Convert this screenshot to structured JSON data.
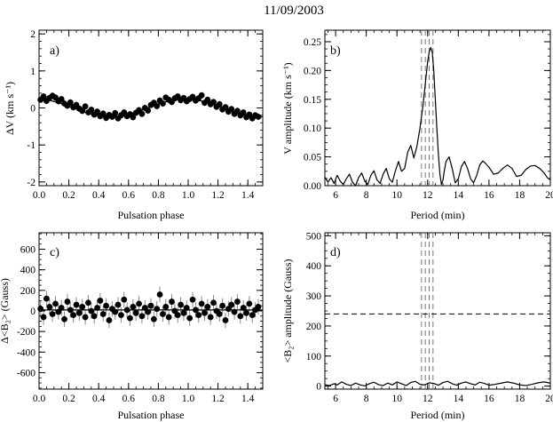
{
  "title": "11/09/2003",
  "chart_data": [
    {
      "id": "a",
      "type": "scatter",
      "panel_label": "a)",
      "xlabel": "Pulsation phase",
      "ylabel": "ΔV (km s⁻¹)",
      "xlim": [
        0,
        1.5
      ],
      "ylim": [
        -2.1,
        2.1
      ],
      "xticks": [
        0.0,
        0.2,
        0.4,
        0.6,
        0.8,
        1.0,
        1.2,
        1.4
      ],
      "yticks": [
        -2,
        -1,
        0,
        1,
        2
      ],
      "x_decimals": 1,
      "fit": {
        "amplitude": 0.24,
        "period": 1.0,
        "phase_of_max": 0.98,
        "offset": 0.0
      },
      "error_bar": 0.09,
      "points": [
        [
          0.01,
          0.22
        ],
        [
          0.03,
          0.31
        ],
        [
          0.05,
          0.19
        ],
        [
          0.07,
          0.27
        ],
        [
          0.09,
          0.33
        ],
        [
          0.11,
          0.28
        ],
        [
          0.13,
          0.18
        ],
        [
          0.15,
          0.24
        ],
        [
          0.17,
          0.12
        ],
        [
          0.19,
          0.06
        ],
        [
          0.21,
          0.15
        ],
        [
          0.23,
          0.02
        ],
        [
          0.25,
          0.08
        ],
        [
          0.27,
          -0.02
        ],
        [
          0.29,
          -0.08
        ],
        [
          0.31,
          0.04
        ],
        [
          0.33,
          -0.12
        ],
        [
          0.35,
          -0.05
        ],
        [
          0.37,
          -0.18
        ],
        [
          0.39,
          -0.1
        ],
        [
          0.41,
          -0.22
        ],
        [
          0.43,
          -0.15
        ],
        [
          0.45,
          -0.27
        ],
        [
          0.47,
          -0.19
        ],
        [
          0.49,
          -0.24
        ],
        [
          0.51,
          -0.14
        ],
        [
          0.53,
          -0.28
        ],
        [
          0.55,
          -0.2
        ],
        [
          0.57,
          -0.12
        ],
        [
          0.59,
          -0.22
        ],
        [
          0.61,
          -0.17
        ],
        [
          0.63,
          -0.25
        ],
        [
          0.65,
          -0.13
        ],
        [
          0.67,
          -0.06
        ],
        [
          0.69,
          -0.16
        ],
        [
          0.71,
          0.0
        ],
        [
          0.73,
          -0.07
        ],
        [
          0.75,
          0.08
        ],
        [
          0.77,
          0.14
        ],
        [
          0.79,
          0.05
        ],
        [
          0.81,
          0.2
        ],
        [
          0.83,
          0.12
        ],
        [
          0.85,
          0.28
        ],
        [
          0.87,
          0.22
        ],
        [
          0.89,
          0.16
        ],
        [
          0.91,
          0.26
        ],
        [
          0.93,
          0.31
        ],
        [
          0.95,
          0.21
        ],
        [
          0.97,
          0.27
        ],
        [
          0.99,
          0.18
        ],
        [
          1.01,
          0.24
        ],
        [
          1.03,
          0.3
        ],
        [
          1.05,
          0.2
        ],
        [
          1.07,
          0.26
        ],
        [
          1.09,
          0.34
        ],
        [
          1.11,
          0.14
        ],
        [
          1.13,
          0.22
        ],
        [
          1.15,
          0.1
        ],
        [
          1.17,
          0.16
        ],
        [
          1.19,
          0.03
        ],
        [
          1.21,
          0.1
        ],
        [
          1.23,
          -0.04
        ],
        [
          1.25,
          0.02
        ],
        [
          1.27,
          -0.1
        ],
        [
          1.29,
          -0.03
        ],
        [
          1.31,
          -0.16
        ],
        [
          1.33,
          -0.08
        ],
        [
          1.35,
          -0.2
        ],
        [
          1.37,
          -0.12
        ],
        [
          1.39,
          -0.25
        ],
        [
          1.41,
          -0.18
        ],
        [
          1.43,
          -0.28
        ],
        [
          1.45,
          -0.2
        ],
        [
          1.47,
          -0.24
        ]
      ]
    },
    {
      "id": "b",
      "type": "line",
      "panel_label": "b)",
      "xlabel": "Period (min)",
      "ylabel": "V amplitude (km s⁻¹)",
      "xlim": [
        5.3,
        20
      ],
      "ylim": [
        0,
        0.27
      ],
      "xticks": [
        6,
        8,
        10,
        12,
        14,
        16,
        18,
        20
      ],
      "yticks": [
        0.0,
        0.05,
        0.1,
        0.15,
        0.2,
        0.25
      ],
      "y_decimals": 2,
      "dashed_vertical_lines_x": [
        11.6,
        11.85,
        12.1,
        12.35
      ],
      "x": [
        5.3,
        5.5,
        5.7,
        5.9,
        6.1,
        6.3,
        6.5,
        6.7,
        6.9,
        7.1,
        7.3,
        7.5,
        7.7,
        7.9,
        8.1,
        8.3,
        8.5,
        8.7,
        8.9,
        9.1,
        9.3,
        9.5,
        9.7,
        9.9,
        10.1,
        10.3,
        10.5,
        10.7,
        10.9,
        11.1,
        11.3,
        11.5,
        11.7,
        11.9,
        12.0,
        12.1,
        12.2,
        12.3,
        12.4,
        12.5,
        12.6,
        12.7,
        12.8,
        12.9,
        13.0,
        13.1,
        13.2,
        13.4,
        13.6,
        13.8,
        14.0,
        14.2,
        14.4,
        14.6,
        14.8,
        15.0,
        15.2,
        15.4,
        15.6,
        15.8,
        16.0,
        16.3,
        16.6,
        16.9,
        17.2,
        17.5,
        17.8,
        18.1,
        18.4,
        18.7,
        19.0,
        19.3,
        19.6,
        19.8,
        20.0
      ],
      "y": [
        0.015,
        0.006,
        0.014,
        0.004,
        0.018,
        0.008,
        0.002,
        0.012,
        0.02,
        0.006,
        0.0,
        0.014,
        0.022,
        0.008,
        0.002,
        0.018,
        0.026,
        0.01,
        0.004,
        0.02,
        0.03,
        0.012,
        0.006,
        0.026,
        0.042,
        0.025,
        0.03,
        0.058,
        0.07,
        0.048,
        0.068,
        0.1,
        0.14,
        0.19,
        0.215,
        0.232,
        0.24,
        0.232,
        0.2,
        0.15,
        0.1,
        0.055,
        0.02,
        0.002,
        0.01,
        0.028,
        0.042,
        0.05,
        0.03,
        0.005,
        0.012,
        0.033,
        0.042,
        0.03,
        0.012,
        0.005,
        0.018,
        0.036,
        0.043,
        0.038,
        0.032,
        0.02,
        0.022,
        0.03,
        0.036,
        0.03,
        0.016,
        0.018,
        0.028,
        0.034,
        0.035,
        0.03,
        0.022,
        0.014,
        0.01
      ]
    },
    {
      "id": "c",
      "type": "scatter",
      "panel_label": "c)",
      "xlabel": "Pulsation phase",
      "ylabel": "Δ<B₂> (Gauss)",
      "xlim": [
        0,
        1.5
      ],
      "ylim": [
        -760,
        760
      ],
      "xticks": [
        0.0,
        0.2,
        0.4,
        0.6,
        0.8,
        1.0,
        1.2,
        1.4
      ],
      "yticks": [
        -600,
        -400,
        -200,
        0,
        200,
        400,
        600
      ],
      "x_decimals": 1,
      "fit": {
        "amplitude": 0,
        "period": 1.0,
        "phase_of_max": 0.0,
        "offset": 10
      },
      "error_bar": 75,
      "points": [
        [
          0.01,
          20
        ],
        [
          0.03,
          -60
        ],
        [
          0.05,
          120
        ],
        [
          0.07,
          40
        ],
        [
          0.09,
          -30
        ],
        [
          0.11,
          70
        ],
        [
          0.13,
          -10
        ],
        [
          0.15,
          30
        ],
        [
          0.17,
          -80
        ],
        [
          0.19,
          90
        ],
        [
          0.21,
          10
        ],
        [
          0.23,
          -40
        ],
        [
          0.25,
          60
        ],
        [
          0.27,
          -20
        ],
        [
          0.29,
          40
        ],
        [
          0.31,
          -60
        ],
        [
          0.33,
          80
        ],
        [
          0.35,
          0
        ],
        [
          0.37,
          -50
        ],
        [
          0.39,
          30
        ],
        [
          0.41,
          100
        ],
        [
          0.43,
          -30
        ],
        [
          0.45,
          50
        ],
        [
          0.47,
          -90
        ],
        [
          0.49,
          20
        ],
        [
          0.51,
          -10
        ],
        [
          0.53,
          60
        ],
        [
          0.55,
          -40
        ],
        [
          0.57,
          110
        ],
        [
          0.59,
          10
        ],
        [
          0.61,
          -70
        ],
        [
          0.63,
          40
        ],
        [
          0.65,
          -20
        ],
        [
          0.67,
          70
        ],
        [
          0.69,
          -50
        ],
        [
          0.71,
          30
        ],
        [
          0.73,
          -10
        ],
        [
          0.75,
          50
        ],
        [
          0.77,
          -80
        ],
        [
          0.79,
          20
        ],
        [
          0.81,
          160
        ],
        [
          0.83,
          -30
        ],
        [
          0.85,
          40
        ],
        [
          0.87,
          -60
        ],
        [
          0.89,
          90
        ],
        [
          0.91,
          0
        ],
        [
          0.93,
          -40
        ],
        [
          0.95,
          60
        ],
        [
          0.97,
          -20
        ],
        [
          0.99,
          30
        ],
        [
          1.01,
          -70
        ],
        [
          1.03,
          110
        ],
        [
          1.05,
          10
        ],
        [
          1.07,
          -40
        ],
        [
          1.09,
          70
        ],
        [
          1.11,
          -20
        ],
        [
          1.13,
          40
        ],
        [
          1.15,
          -60
        ],
        [
          1.17,
          80
        ],
        [
          1.19,
          0
        ],
        [
          1.21,
          -30
        ],
        [
          1.23,
          50
        ],
        [
          1.25,
          -90
        ],
        [
          1.27,
          20
        ],
        [
          1.29,
          60
        ],
        [
          1.31,
          -10
        ],
        [
          1.33,
          90
        ],
        [
          1.35,
          -50
        ],
        [
          1.37,
          30
        ],
        [
          1.39,
          -20
        ],
        [
          1.41,
          70
        ],
        [
          1.43,
          -40
        ],
        [
          1.45,
          10
        ],
        [
          1.47,
          40
        ]
      ]
    },
    {
      "id": "d",
      "type": "line",
      "panel_label": "d)",
      "xlabel": "Period (min)",
      "ylabel": "<B₂> amplitude (Gauss)",
      "xlim": [
        5.3,
        20
      ],
      "ylim": [
        -10,
        510
      ],
      "xticks": [
        6,
        8,
        10,
        12,
        14,
        16,
        18,
        20
      ],
      "yticks": [
        0,
        100,
        200,
        300,
        400,
        500
      ],
      "y_decimals": 0,
      "dashed_vertical_lines_x": [
        11.6,
        11.85,
        12.1,
        12.35
      ],
      "dashed_horizontal_line_y": 240,
      "x": [
        5.3,
        5.6,
        5.9,
        6.1,
        6.4,
        6.7,
        7.0,
        7.3,
        7.6,
        7.9,
        8.2,
        8.5,
        8.8,
        9.1,
        9.4,
        9.7,
        10.0,
        10.3,
        10.6,
        10.9,
        11.2,
        11.5,
        11.8,
        12.1,
        12.4,
        12.7,
        13.0,
        13.3,
        13.6,
        13.9,
        14.2,
        14.5,
        14.8,
        15.1,
        15.4,
        15.7,
        16.0,
        16.4,
        16.8,
        17.2,
        17.6,
        18.0,
        18.4,
        18.8,
        19.2,
        19.6,
        20.0
      ],
      "y": [
        5,
        2,
        8,
        4,
        14,
        6,
        2,
        10,
        4,
        1,
        8,
        13,
        5,
        2,
        10,
        4,
        14,
        8,
        2,
        12,
        16,
        6,
        4,
        11,
        9,
        3,
        12,
        16,
        8,
        3,
        10,
        14,
        8,
        4,
        13,
        9,
        3,
        6,
        10,
        14,
        10,
        4,
        2,
        6,
        11,
        14,
        10
      ]
    }
  ]
}
